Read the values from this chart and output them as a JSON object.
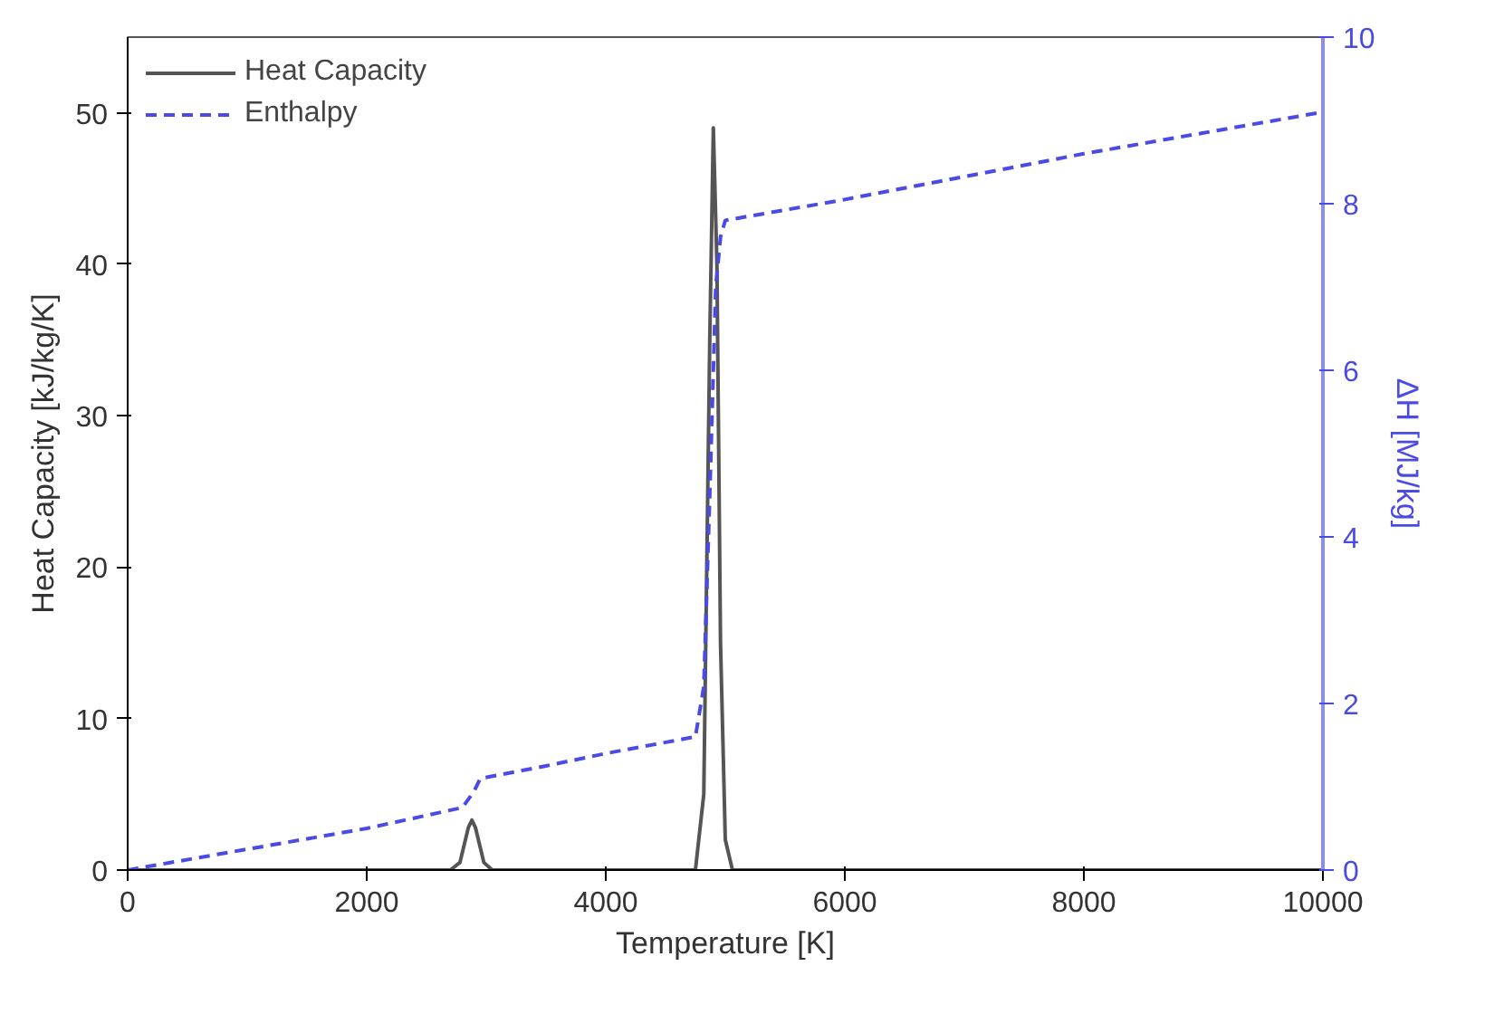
{
  "chart_data": {
    "type": "line",
    "xlabel": "Temperature [K]",
    "ylabel": "Heat Capacity [kJ/kg/K]",
    "y2label": "ΔH [MJ/kg]",
    "xlim": [
      0,
      10000
    ],
    "xticks": [
      0,
      2000,
      4000,
      6000,
      8000,
      10000
    ],
    "ylim": [
      0,
      55
    ],
    "yticks": [
      0,
      10,
      20,
      30,
      40,
      50
    ],
    "y2lim": [
      0,
      10
    ],
    "y2ticks": [
      0,
      2,
      4,
      6,
      8,
      10
    ],
    "legend": "top left",
    "grid": false,
    "series": [
      {
        "name": "Heat Capacity",
        "color": "#555555",
        "line_style": "solid",
        "x": [
          0,
          2700,
          2780,
          2850,
          2880,
          2910,
          2980,
          3050,
          4750,
          4820,
          4870,
          4900,
          4930,
          4960,
          5000,
          5060,
          10000
        ],
        "values": [
          0,
          0,
          0.5,
          2.8,
          3.3,
          2.8,
          0.5,
          0,
          0,
          5,
          35,
          49,
          40,
          15,
          2,
          0,
          0
        ]
      },
      {
        "name": "Enthalpy",
        "color": "#4a4ae6",
        "axis": "y2",
        "line_style": "dashed",
        "x": [
          0,
          1000,
          2000,
          2800,
          2900,
          2950,
          3500,
          4000,
          4750,
          4820,
          4870,
          4920,
          4960,
          5000,
          6000,
          8000,
          10000
        ],
        "values": [
          0,
          0.25,
          0.5,
          0.75,
          0.95,
          1.1,
          1.25,
          1.4,
          1.6,
          2.2,
          4.5,
          7.0,
          7.6,
          7.8,
          8.05,
          8.6,
          9.1
        ]
      }
    ]
  }
}
